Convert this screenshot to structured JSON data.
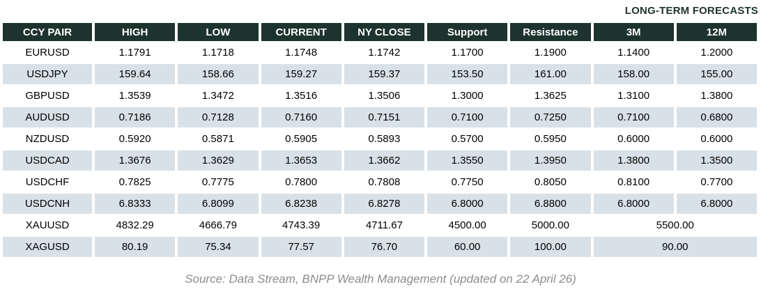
{
  "title": "LONG-TERM FORECASTS",
  "footer": "Source: Data Stream, BNPP Wealth Management (updated on 22 April 26)",
  "colors": {
    "header_bg": "#1d332e",
    "header_text": "#ffffff",
    "alt_row_bg": "#d8e1e7",
    "title_color": "#1d332e",
    "footer_color": "#8c8c8c"
  },
  "chart_data": {
    "type": "table",
    "title": "LONG-TERM FORECASTS",
    "columns": [
      "CCY PAIR",
      "HIGH",
      "LOW",
      "CURRENT",
      "NY CLOSE",
      "Support",
      "Resistance",
      "3M",
      "12M"
    ],
    "long_term_forecast_columns": [
      "3M",
      "12M"
    ],
    "rows": [
      {
        "pair": "EURUSD",
        "values": [
          "1.1791",
          "1.1718",
          "1.1748",
          "1.1742",
          "1.1700",
          "1.1900"
        ],
        "m3": "1.1400",
        "m12": "1.2000"
      },
      {
        "pair": "USDJPY",
        "values": [
          "159.64",
          "158.66",
          "159.27",
          "159.37",
          "153.50",
          "161.00"
        ],
        "m3": "158.00",
        "m12": "155.00"
      },
      {
        "pair": "GBPUSD",
        "values": [
          "1.3539",
          "1.3472",
          "1.3516",
          "1.3506",
          "1.3000",
          "1.3625"
        ],
        "m3": "1.3100",
        "m12": "1.3800"
      },
      {
        "pair": "AUDUSD",
        "values": [
          "0.7186",
          "0.7128",
          "0.7160",
          "0.7151",
          "0.7100",
          "0.7250"
        ],
        "m3": "0.7100",
        "m12": "0.6800"
      },
      {
        "pair": "NZDUSD",
        "values": [
          "0.5920",
          "0.5871",
          "0.5905",
          "0.5893",
          "0.5700",
          "0.5950"
        ],
        "m3": "0.6000",
        "m12": "0.6000"
      },
      {
        "pair": "USDCAD",
        "values": [
          "1.3676",
          "1.3629",
          "1.3653",
          "1.3662",
          "1.3550",
          "1.3950"
        ],
        "m3": "1.3800",
        "m12": "1.3500"
      },
      {
        "pair": "USDCHF",
        "values": [
          "0.7825",
          "0.7775",
          "0.7800",
          "0.7808",
          "0.7750",
          "0.8050"
        ],
        "m3": "0.8100",
        "m12": "0.7700"
      },
      {
        "pair": "USDCNH",
        "values": [
          "6.8333",
          "6.8099",
          "6.8238",
          "6.8278",
          "6.8000",
          "6.8800"
        ],
        "m3": "6.8000",
        "m12": "6.8000"
      },
      {
        "pair": "XAUUSD",
        "values": [
          "4832.29",
          "4666.79",
          "4743.39",
          "4711.67",
          "4500.00",
          "5000.00"
        ],
        "merged_3m_12m": "5500.00"
      },
      {
        "pair": "XAGUSD",
        "values": [
          "80.19",
          "75.34",
          "77.57",
          "76.70",
          "60.00",
          "100.00"
        ],
        "merged_3m_12m": "90.00"
      }
    ]
  }
}
